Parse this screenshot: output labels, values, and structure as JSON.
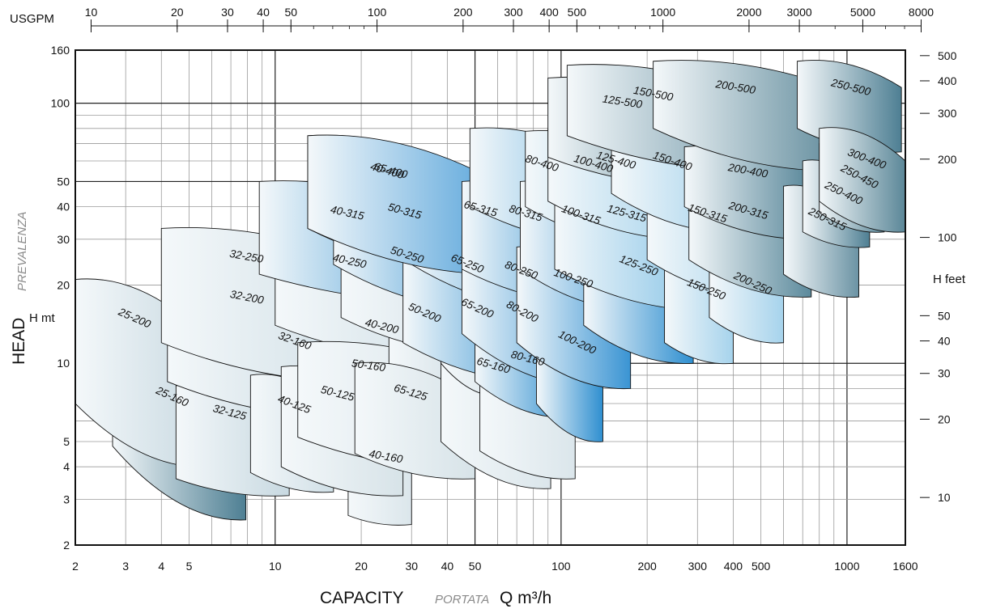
{
  "chart_data": {
    "type": "area",
    "title": "",
    "x_axis": {
      "label": "CAPACITY",
      "label_italic": "PORTATA",
      "label_unit": "Q m³/h",
      "scale": "log",
      "range": [
        2,
        1600
      ],
      "ticks": [
        "2",
        "3",
        "4",
        "5",
        "10",
        "20",
        "30",
        "40",
        "50",
        "100",
        "200",
        "300",
        "400",
        "500",
        "1000",
        "1600"
      ]
    },
    "x2_axis": {
      "label": "USGPM",
      "scale": "log",
      "ticks": [
        "10",
        "20",
        "30",
        "40",
        "50",
        "100",
        "200",
        "300",
        "400",
        "500",
        "1000",
        "2000",
        "3000",
        "5000",
        "8000"
      ]
    },
    "y_axis": {
      "label": "HEAD",
      "label_italic": "PREVALENZA",
      "label_unit": "H mt",
      "scale": "log",
      "range": [
        2,
        160
      ],
      "ticks": [
        "2",
        "3",
        "4",
        "5",
        "10",
        "20",
        "30",
        "40",
        "50",
        "100",
        "160"
      ]
    },
    "y2_axis": {
      "label": "H feet",
      "scale": "log",
      "ticks": [
        "10",
        "20",
        "30",
        "40",
        "50",
        "100",
        "200",
        "300",
        "400",
        "500"
      ]
    },
    "grid": true,
    "series": [
      {
        "name": "25-160",
        "q": [
          2.7,
          7.9
        ],
        "h_top": [
          10.5,
          6.2
        ],
        "h_bot": [
          4.8,
          2.5
        ],
        "color": "#4e7f93"
      },
      {
        "name": "25-200",
        "q": [
          2.0,
          5.8
        ],
        "h_top": [
          21,
          12.5
        ],
        "h_bot": [
          7.0,
          4.0
        ],
        "color": "#c8d9e1"
      },
      {
        "name": "32-125",
        "q": [
          4.5,
          11.2
        ],
        "h_top": [
          8.2,
          6.3
        ],
        "h_bot": [
          3.6,
          3.1
        ],
        "color": "#c8d9e1"
      },
      {
        "name": "32-160",
        "q": [
          7.8,
          18
        ],
        "h_top": [
          16,
          11.5
        ],
        "h_bot": [
          7.3,
          4.8
        ],
        "color": "#dbe6eb"
      },
      {
        "name": "32-200",
        "q": [
          4.2,
          20
        ],
        "h_top": [
          23,
          16.5
        ],
        "h_bot": [
          8.5,
          6.2
        ],
        "color": "#c8d9e1"
      },
      {
        "name": "32-250",
        "q": [
          4.0,
          22
        ],
        "h_top": [
          33,
          23.5
        ],
        "h_bot": [
          12,
          8.5
        ],
        "color": "#d0dfe6"
      },
      {
        "name": "40-125",
        "q": [
          8.2,
          16
        ],
        "h_top": [
          9,
          6.8
        ],
        "h_bot": [
          3.8,
          3.2
        ],
        "color": "#d0dfe6"
      },
      {
        "name": "40-160",
        "q": [
          18,
          30
        ],
        "h_top": [
          5.2,
          4.7
        ],
        "h_bot": [
          2.6,
          2.4
        ],
        "color": "#dbe6eb"
      },
      {
        "name": "40-200",
        "q": [
          15,
          40
        ],
        "h_top": [
          17.5,
          13.5
        ],
        "h_bot": [
          9.5,
          7.0
        ],
        "color": "#d7e3e8"
      },
      {
        "name": "40-250",
        "q": [
          10,
          42
        ],
        "h_top": [
          32,
          22.5
        ],
        "h_bot": [
          14,
          10.5
        ],
        "color": "#d0dfe6"
      },
      {
        "name": "40-315",
        "q": [
          8.8,
          52
        ],
        "h_top": [
          50,
          33
        ],
        "h_bot": [
          22,
          17
        ],
        "color": "#2f8fd0"
      },
      {
        "name": "40-400",
        "q": [
          13,
          62
        ],
        "h_top": [
          75,
          46
        ],
        "h_bot": [
          33,
          22
        ],
        "color": "#4c9ed8"
      },
      {
        "name": "50-125",
        "q": [
          10.5,
          28
        ],
        "h_top": [
          9.7,
          7.4
        ],
        "h_bot": [
          4.0,
          3.1
        ],
        "color": "#d7e3e8"
      },
      {
        "name": "50-160",
        "q": [
          12,
          46
        ],
        "h_top": [
          12,
          9.7
        ],
        "h_bot": [
          5.2,
          4.0
        ],
        "color": "#dbe6eb"
      },
      {
        "name": "50-200",
        "q": [
          25,
          40
        ],
        "h_top": [
          20,
          16
        ],
        "h_bot": [
          10,
          8.0
        ],
        "color": "#dbe6eb"
      },
      {
        "name": "50-250",
        "q": [
          17,
          58
        ],
        "h_top": [
          35,
          23
        ],
        "h_bot": [
          15,
          11
        ],
        "color": "#d0dfe6"
      },
      {
        "name": "50-315",
        "q": [
          16,
          62
        ],
        "h_top": [
          51,
          34
        ],
        "h_bot": [
          24,
          16
        ],
        "color": "#2f8fd0"
      },
      {
        "name": "65-125",
        "q": [
          19,
          50
        ],
        "h_top": [
          10,
          7.3
        ],
        "h_bot": [
          4.5,
          3.6
        ],
        "color": "#d7e3e8"
      },
      {
        "name": "65-160",
        "q": [
          38,
          92
        ],
        "h_top": [
          12.5,
          9.5
        ],
        "h_bot": [
          5,
          3.3
        ],
        "color": "#dbe6eb"
      },
      {
        "name": "65-200",
        "q": [
          38,
          62
        ],
        "h_top": [
          21,
          16.5
        ],
        "h_bot": [
          10,
          7.5
        ],
        "color": "#dbe6eb"
      },
      {
        "name": "65-250",
        "q": [
          28,
          92
        ],
        "h_top": [
          34,
          20
        ],
        "h_bot": [
          12,
          8.5
        ],
        "color": "#2f8fd0"
      },
      {
        "name": "65-315",
        "q": [
          30,
          110
        ],
        "h_top": [
          52,
          35
        ],
        "h_bot": [
          24,
          16
        ],
        "color": "#2f8fd0"
      },
      {
        "name": "65-400",
        "q": [
          13,
          68
        ],
        "h_top": [
          75,
          46
        ],
        "h_bot": [
          33,
          22
        ],
        "color": "#4c9ed8"
      },
      {
        "name": "80-160",
        "q": [
          52,
          112
        ],
        "h_top": [
          13,
          10.5
        ],
        "h_bot": [
          4.6,
          3.6
        ],
        "color": "#dbe6eb"
      },
      {
        "name": "80-200",
        "q": [
          50,
          108
        ],
        "h_top": [
          22,
          14
        ],
        "h_bot": [
          8.5,
          6.2
        ],
        "color": "#2f8fd0"
      },
      {
        "name": "80-250",
        "q": [
          45,
          130
        ],
        "h_top": [
          31,
          20
        ],
        "h_bot": [
          13,
          8.2
        ],
        "color": "#3a94d3"
      },
      {
        "name": "80-315",
        "q": [
          45,
          145
        ],
        "h_top": [
          50,
          34
        ],
        "h_bot": [
          23,
          17
        ],
        "color": "#2f8fd0"
      },
      {
        "name": "80-400",
        "q": [
          48,
          190
        ],
        "h_top": [
          80,
          50
        ],
        "h_bot": [
          40,
          28
        ],
        "color": "#5aaadc"
      },
      {
        "name": "100-200",
        "q": [
          82,
          140
        ],
        "h_top": [
          16,
          12
        ],
        "h_bot": [
          7.0,
          5.0
        ],
        "color": "#2f8fd0"
      },
      {
        "name": "100-250",
        "q": [
          70,
          175
        ],
        "h_top": [
          28,
          20
        ],
        "h_bot": [
          12,
          8.0
        ],
        "color": "#3a94d3"
      },
      {
        "name": "100-315",
        "q": [
          72,
          200
        ],
        "h_top": [
          50,
          34
        ],
        "h_bot": [
          23,
          16
        ],
        "color": "#3a94d3"
      },
      {
        "name": "100-400",
        "q": [
          75,
          250
        ],
        "h_top": [
          78,
          53
        ],
        "h_bot": [
          40,
          28
        ],
        "color": "#8ec8e6"
      },
      {
        "name": "125-250",
        "q": [
          120,
          290
        ],
        "h_top": [
          32,
          22
        ],
        "h_bot": [
          14,
          10
        ],
        "color": "#2f8fd0"
      },
      {
        "name": "125-315",
        "q": [
          95,
          350
        ],
        "h_top": [
          50,
          34
        ],
        "h_bot": [
          23,
          16
        ],
        "color": "#7dbfe5"
      },
      {
        "name": "125-400",
        "q": [
          90,
          300
        ],
        "h_top": [
          80,
          55
        ],
        "h_bot": [
          42,
          30
        ],
        "color": "#9fd0eb"
      },
      {
        "name": "125-500",
        "q": [
          90,
          350
        ],
        "h_top": [
          125,
          100
        ],
        "h_bot": [
          62,
          48
        ],
        "color": "#5b8798"
      },
      {
        "name": "150-250",
        "q": [
          230,
          400
        ],
        "h_top": [
          25,
          19.5
        ],
        "h_bot": [
          12,
          10
        ],
        "color": "#a6d3ec"
      },
      {
        "name": "150-315",
        "q": [
          200,
          550
        ],
        "h_top": [
          50,
          35
        ],
        "h_bot": [
          25,
          18
        ],
        "color": "#9fd0eb"
      },
      {
        "name": "150-400",
        "q": [
          150,
          420
        ],
        "h_top": [
          80,
          55
        ],
        "h_bot": [
          45,
          32
        ],
        "color": "#9fd0eb"
      },
      {
        "name": "150-500",
        "q": [
          105,
          550
        ],
        "h_top": [
          140,
          100
        ],
        "h_bot": [
          75,
          55
        ],
        "color": "#6b93a4"
      },
      {
        "name": "200-250",
        "q": [
          330,
          600
        ],
        "h_top": [
          27,
          20
        ],
        "h_bot": [
          15,
          12
        ],
        "color": "#a6d3ec"
      },
      {
        "name": "200-315",
        "q": [
          280,
          750
        ],
        "h_top": [
          50,
          37
        ],
        "h_bot": [
          25,
          18
        ],
        "color": "#5c8a9c"
      },
      {
        "name": "200-400",
        "q": [
          270,
          800
        ],
        "h_top": [
          68,
          55
        ],
        "h_bot": [
          40,
          30
        ],
        "color": "#4e7f93"
      },
      {
        "name": "200-500",
        "q": [
          210,
          1000
        ],
        "h_top": [
          145,
          110
        ],
        "h_bot": [
          80,
          55
        ],
        "color": "#5b8798"
      },
      {
        "name": "250-315",
        "q": [
          600,
          1100
        ],
        "h_top": [
          48,
          35
        ],
        "h_bot": [
          22,
          18
        ],
        "color": "#6b93a4"
      },
      {
        "name": "250-400",
        "q": [
          700,
          1200
        ],
        "h_top": [
          60,
          45
        ],
        "h_bot": [
          32,
          28
        ],
        "color": "#4e7f93"
      },
      {
        "name": "250-450",
        "q": [
          800,
          1350
        ],
        "h_top": [
          70,
          52
        ],
        "h_bot": [
          38,
          32
        ],
        "color": "#5b8798"
      },
      {
        "name": "250-500",
        "q": [
          670,
          1550
        ],
        "h_top": [
          145,
          115
        ],
        "h_bot": [
          80,
          65
        ],
        "color": "#4e7f93"
      },
      {
        "name": "300-400",
        "q": [
          800,
          1600
        ],
        "h_top": [
          80,
          60
        ],
        "h_bot": [
          42,
          32
        ],
        "color": "#5b8798"
      }
    ]
  }
}
